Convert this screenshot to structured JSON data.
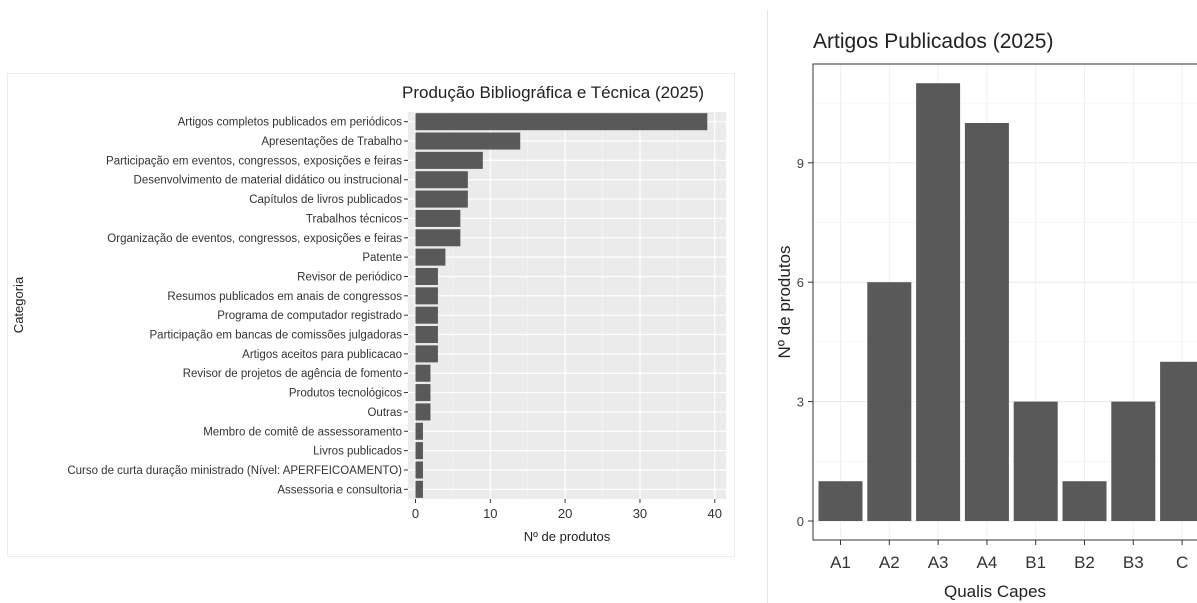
{
  "chart_data": [
    {
      "type": "bar",
      "orientation": "horizontal",
      "title": "Produção Bibliográfica e Técnica (2025)",
      "xlabel": "Nº de produtos",
      "ylabel": "Categoria",
      "xlim": [
        0,
        40
      ],
      "xticks": [
        "0",
        "10",
        "20",
        "30",
        "40"
      ],
      "grid": true,
      "categories": [
        "Artigos completos publicados em periódicos",
        "Apresentações de Trabalho",
        "Participação em eventos, congressos, exposições e feiras",
        "Desenvolvimento de material didático ou instrucional",
        "Capítulos de livros publicados",
        "Trabalhos técnicos",
        "Organização de eventos, congressos, exposições e feiras",
        "Patente",
        "Revisor de periódico",
        "Resumos publicados em anais de congressos",
        "Programa de computador registrado",
        "Participação em bancas de comissões julgadoras",
        "Artigos aceitos para publicacao",
        "Revisor de projetos de agência de fomento",
        "Produtos tecnológicos",
        "Outras",
        "Membro de comitê de assessoramento",
        "Livros publicados",
        "Curso de curta duração ministrado (Nível: APERFEICOAMENTO)",
        "Assessoria e consultoria"
      ],
      "values": [
        39,
        14,
        9,
        7,
        7,
        6,
        6,
        4,
        3,
        3,
        3,
        3,
        3,
        2,
        2,
        2,
        1,
        1,
        1,
        1
      ],
      "bar_color": "#595959"
    },
    {
      "type": "bar",
      "orientation": "vertical",
      "title": "Artigos Publicados (2025)",
      "xlabel": "Qualis Capes",
      "ylabel": "Nº de produtos",
      "ylim": [
        0,
        11.5
      ],
      "yticks": [
        "0",
        "3",
        "6",
        "9"
      ],
      "grid": true,
      "categories": [
        "A1",
        "A2",
        "A3",
        "A4",
        "B1",
        "B2",
        "B3",
        "C"
      ],
      "values": [
        1,
        6,
        11,
        10,
        3,
        1,
        3,
        4
      ],
      "bar_color": "#595959"
    }
  ]
}
